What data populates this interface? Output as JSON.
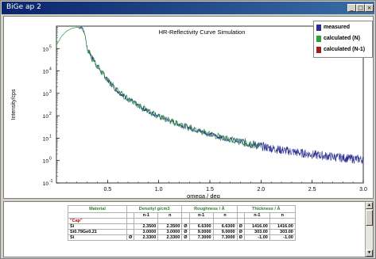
{
  "window": {
    "title": "BiGe ap 2",
    "btn_min": "_",
    "btn_max": "□",
    "btn_close": "×"
  },
  "colors": {
    "measured": "#2b2f8f",
    "calculated_n": "#2e9e3a",
    "calculated_n1": "#a01c1c",
    "title_bar": "#0a246a"
  },
  "chart_data": {
    "type": "line",
    "title": "HR-Reflectivity Curve Simulation",
    "xlabel": "omega / deg",
    "ylabel": "Intensity/cps",
    "xlim": [
      0.0,
      3.0
    ],
    "ylim_log10": [
      -1,
      6
    ],
    "y_scale": "log",
    "x_ticks": [
      "0.5",
      "1.0",
      "1.5",
      "2.0",
      "2.5",
      "3.0"
    ],
    "y_ticks": [
      "10",
      "10",
      "10",
      "10",
      "10",
      "10",
      "10"
    ],
    "y_tick_exponents": [
      "-1",
      "0",
      "1",
      "2",
      "3",
      "4",
      "5"
    ],
    "legend_placement": "top-right",
    "series": [
      {
        "name": "measured",
        "x": [
          0.22,
          0.24,
          0.26,
          0.28,
          0.3,
          0.35,
          0.4,
          0.5,
          0.6,
          0.7,
          0.8,
          0.9,
          1.0,
          1.1,
          1.2,
          1.3,
          1.4,
          1.5,
          1.6,
          1.7,
          1.8,
          1.9,
          2.0,
          2.1,
          2.2,
          2.3,
          2.4,
          2.5,
          2.6,
          2.7,
          2.8,
          2.9,
          3.0
        ],
        "log10_y": [
          5.9,
          5.95,
          5.9,
          5.6,
          5.0,
          4.6,
          4.2,
          3.6,
          3.1,
          2.75,
          2.45,
          2.2,
          1.98,
          1.8,
          1.62,
          1.47,
          1.32,
          1.18,
          1.05,
          0.94,
          0.84,
          0.74,
          0.64,
          0.55,
          0.47,
          0.4,
          0.33,
          0.27,
          0.22,
          0.17,
          0.12,
          0.08,
          0.05
        ]
      },
      {
        "name": "calculated (N)",
        "x": [
          0.0,
          0.05,
          0.1,
          0.15,
          0.2,
          0.24,
          0.28,
          0.3,
          0.35,
          0.4,
          0.5,
          0.6,
          0.7,
          0.8,
          0.9,
          1.0,
          1.1,
          1.2,
          1.3,
          1.4,
          1.5,
          1.6,
          1.7,
          1.8,
          1.9,
          2.0
        ],
        "log10_y": [
          5.15,
          5.55,
          5.78,
          5.9,
          5.95,
          5.95,
          5.6,
          5.0,
          4.55,
          4.2,
          3.6,
          3.1,
          2.75,
          2.45,
          2.2,
          1.98,
          1.8,
          1.62,
          1.47,
          1.32,
          1.18,
          1.05,
          0.94,
          0.84,
          0.74,
          0.64
        ]
      },
      {
        "name": "calculated (N-1)",
        "x": [],
        "log10_y": []
      }
    ]
  },
  "table": {
    "headers": {
      "material": "Material",
      "density": "Density/ g/cm3",
      "roughness": "Roughness / Å",
      "thickness": "Thickness / Å",
      "n1": "n-1",
      "n": "n"
    },
    "cap_label": "\"Cap\"",
    "rows": [
      {
        "material": "Si",
        "phi1": "",
        "d1": "2.3500",
        "d2": "2.3500",
        "phi2": "Ø",
        "r1": "6.6300",
        "r2": "6.6300",
        "phi3": "Ø",
        "t1": "1416.00",
        "t2": "1416.00"
      },
      {
        "material": "Si0.79Ge0.21",
        "phi1": "",
        "d1": "3.0000",
        "d2": "3.0000",
        "phi2": "Ø",
        "r1": "9.0000",
        "r2": "9.0000",
        "phi3": "Ø",
        "t1": "303.00",
        "t2": "303.00"
      },
      {
        "material": "Si",
        "phi1": "Ø",
        "d1": "2.3300",
        "d2": "2.3300",
        "phi2": "Ø",
        "r1": "7.3000",
        "r2": "7.3000",
        "phi3": "Ø",
        "t1": "-1.00",
        "t2": "-1.00"
      }
    ]
  }
}
